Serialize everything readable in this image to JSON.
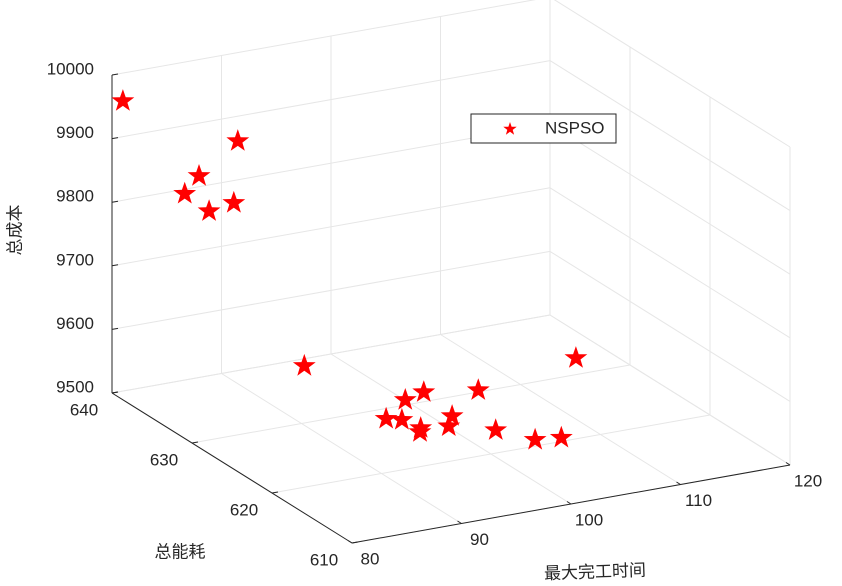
{
  "chart_data": {
    "type": "scatter3d",
    "xlabel": "最大完工时间",
    "ylabel": "总能耗",
    "zlabel": "总成本",
    "xlim": [
      80,
      120
    ],
    "ylim": [
      610,
      640
    ],
    "zlim": [
      9500,
      10000
    ],
    "xticks": [
      80,
      90,
      100,
      110,
      120
    ],
    "yticks": [
      610,
      620,
      630,
      640
    ],
    "zticks": [
      9500,
      9600,
      9700,
      9800,
      9900,
      10000
    ],
    "grid": true,
    "legend": "northeast",
    "series": [
      {
        "name": "NSPSO",
        "color": "#ff0000",
        "x": [
          80.7,
          90.1,
          87.0,
          85.4,
          86.6,
          89.3,
          95.3,
          115.5,
          104.9,
          100.8,
          98.6,
          95.1,
          96.1,
          96.5,
          100.1,
          98.7,
          96.0,
          101.6,
          103.3,
          105.4
        ],
        "y": [
          639.6,
          638.1,
          638.7,
          638.3,
          636.9,
          637.5,
          636.9,
          630.6,
          628.3,
          629.5,
          628.8,
          626.4,
          625.8,
          624.0,
          625.0,
          623.5,
          623.4,
          621.6,
          619.0,
          618.6
        ],
        "z": [
          9960,
          9880,
          9830,
          9810,
          9790,
          9790,
          9520,
          9520,
          9520,
          9520,
          9520,
          9520,
          9520,
          9520,
          9520,
          9520,
          9520,
          9520,
          9520,
          9520
        ]
      }
    ]
  }
}
